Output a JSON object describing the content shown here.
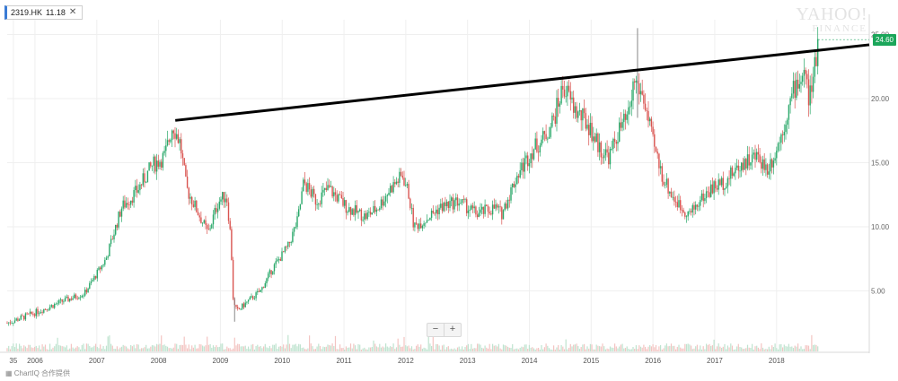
{
  "symbol": {
    "name": "2319.HK",
    "price": "11.18",
    "close_glyph": "✕",
    "accent": "#3a7bd5"
  },
  "branding": {
    "line1": "YAHOO!",
    "line2": "FINANCE"
  },
  "current_price_label": "24.60",
  "zoom": {
    "out": "−",
    "in": "+"
  },
  "credit": "ChartIQ 合作提供",
  "colors": {
    "up": "#2aa86a",
    "down": "#d9534f",
    "trendline": "#000000",
    "grid": "#efefef",
    "price_badge": "#1ba65a"
  },
  "icons": {
    "credit": "chartiq-logo-icon"
  },
  "chart_data": {
    "type": "candlestick",
    "title": "",
    "xlabel": "",
    "ylabel": "",
    "x_range": [
      2005.0,
      2018.95
    ],
    "ylim": [
      0,
      26
    ],
    "x_ticks": [
      {
        "label": "35",
        "x": 2005.1
      },
      {
        "label": "2006",
        "x": 2005.45
      },
      {
        "label": "2007",
        "x": 2006.45
      },
      {
        "label": "2008",
        "x": 2007.45
      },
      {
        "label": "2009",
        "x": 2008.45
      },
      {
        "label": "2010",
        "x": 2009.45
      },
      {
        "label": "2011",
        "x": 2010.45
      },
      {
        "label": "2012",
        "x": 2011.45
      },
      {
        "label": "2013",
        "x": 2012.45
      },
      {
        "label": "2014",
        "x": 2013.45
      },
      {
        "label": "2015",
        "x": 2014.45
      },
      {
        "label": "2016",
        "x": 2015.45
      },
      {
        "label": "2017",
        "x": 2016.45
      },
      {
        "label": "2018",
        "x": 2017.45
      }
    ],
    "y_ticks": [
      {
        "label": "5.00",
        "value": 5
      },
      {
        "label": "10.00",
        "value": 10
      },
      {
        "label": "15.00",
        "value": 15
      },
      {
        "label": "20.00",
        "value": 20
      },
      {
        "label": "25.00",
        "value": 25
      }
    ],
    "price_path": [
      [
        2005.0,
        2.5
      ],
      [
        2005.4,
        3.2
      ],
      [
        2005.9,
        4.2
      ],
      [
        2006.25,
        4.8
      ],
      [
        2006.6,
        7.5
      ],
      [
        2006.85,
        11.5
      ],
      [
        2007.1,
        12.8
      ],
      [
        2007.35,
        14.8
      ],
      [
        2007.55,
        15.5
      ],
      [
        2007.68,
        18.0
      ],
      [
        2007.8,
        16.5
      ],
      [
        2007.9,
        13.0
      ],
      [
        2008.05,
        11.5
      ],
      [
        2008.25,
        9.5
      ],
      [
        2008.42,
        12.0
      ],
      [
        2008.55,
        12.5
      ],
      [
        2008.62,
        9.0
      ],
      [
        2008.66,
        4.0
      ],
      [
        2008.72,
        3.4
      ],
      [
        2008.85,
        4.0
      ],
      [
        2009.1,
        5.0
      ],
      [
        2009.3,
        6.8
      ],
      [
        2009.55,
        8.5
      ],
      [
        2009.7,
        10.5
      ],
      [
        2009.8,
        13.5
      ],
      [
        2010.0,
        12.0
      ],
      [
        2010.2,
        13.0
      ],
      [
        2010.5,
        11.5
      ],
      [
        2010.8,
        10.8
      ],
      [
        2011.0,
        11.5
      ],
      [
        2011.2,
        13.0
      ],
      [
        2011.4,
        14.0
      ],
      [
        2011.5,
        12.5
      ],
      [
        2011.58,
        10.0
      ],
      [
        2011.75,
        10.5
      ],
      [
        2012.0,
        11.5
      ],
      [
        2012.3,
        12.0
      ],
      [
        2012.6,
        11.0
      ],
      [
        2012.9,
        11.5
      ],
      [
        2013.0,
        11.0
      ],
      [
        2013.25,
        14.0
      ],
      [
        2013.5,
        16.0
      ],
      [
        2013.7,
        17.0
      ],
      [
        2013.85,
        18.5
      ],
      [
        2014.0,
        21.0
      ],
      [
        2014.2,
        19.0
      ],
      [
        2014.4,
        18.0
      ],
      [
        2014.6,
        16.0
      ],
      [
        2014.75,
        15.5
      ],
      [
        2014.9,
        17.5
      ],
      [
        2015.05,
        18.5
      ],
      [
        2015.15,
        21.5
      ],
      [
        2015.3,
        20.0
      ],
      [
        2015.45,
        16.5
      ],
      [
        2015.6,
        14.0
      ],
      [
        2015.75,
        12.5
      ],
      [
        2015.9,
        11.5
      ],
      [
        2016.05,
        11.0
      ],
      [
        2016.2,
        12.0
      ],
      [
        2016.4,
        13.0
      ],
      [
        2016.6,
        13.5
      ],
      [
        2016.9,
        15.0
      ],
      [
        2017.15,
        15.5
      ],
      [
        2017.3,
        14.5
      ],
      [
        2017.45,
        16.0
      ],
      [
        2017.6,
        18.5
      ],
      [
        2017.75,
        21.0
      ],
      [
        2017.9,
        22.0
      ],
      [
        2017.98,
        20.0
      ],
      [
        2018.05,
        21.5
      ],
      [
        2018.12,
        24.6
      ]
    ],
    "spikes": [
      {
        "x": 2015.2,
        "low": 18.5,
        "high": 25.5
      },
      {
        "x": 2008.68,
        "low": 2.6,
        "high": 4.5
      }
    ],
    "trendline": {
      "start": [
        2007.72,
        18.3
      ],
      "end": [
        2018.95,
        24.2
      ]
    },
    "last_price": 24.6,
    "volume": {
      "max_relative": 1.0,
      "source": "bars along bottom"
    }
  }
}
